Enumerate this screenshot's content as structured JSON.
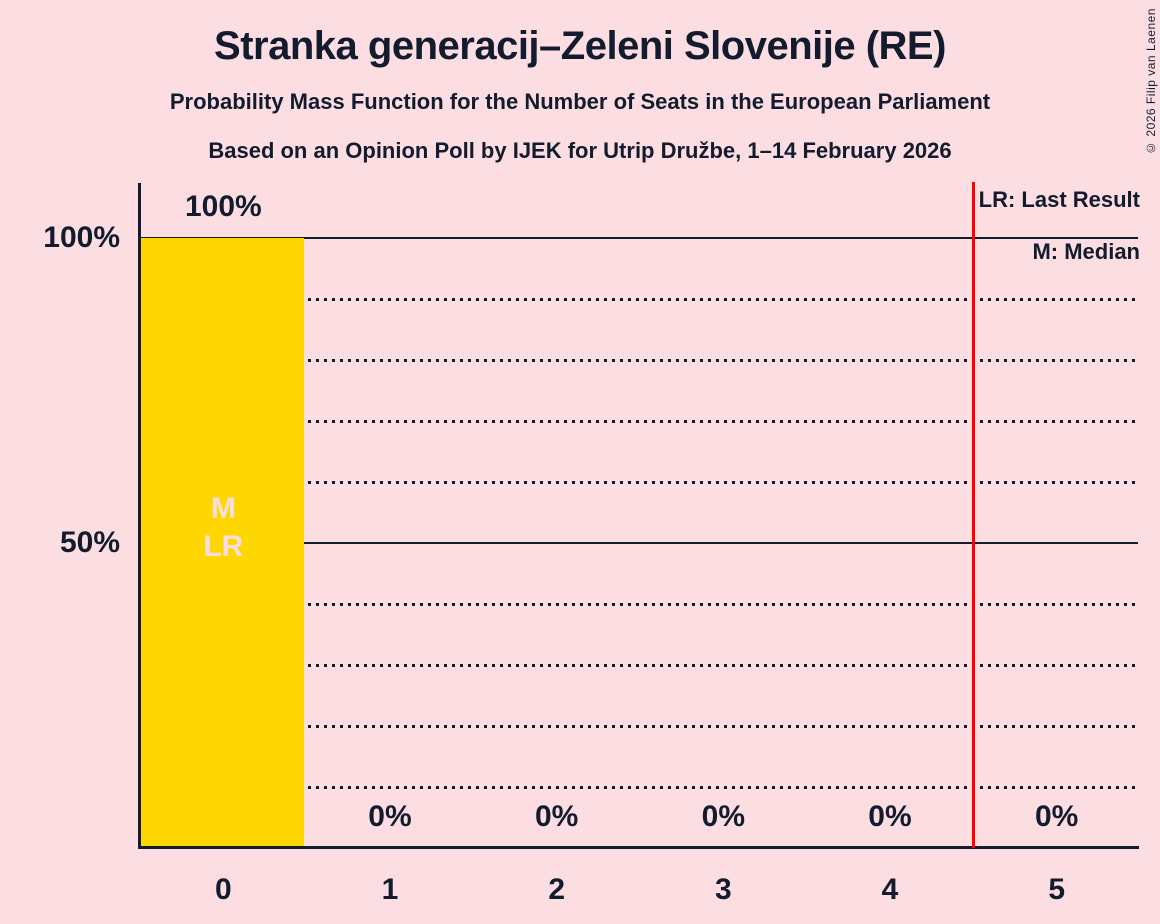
{
  "title": "Stranka generacij–Zeleni Slovenije (RE)",
  "subtitle1": "Probability Mass Function for the Number of Seats in the European Parliament",
  "subtitle2": "Based on an Opinion Poll by IJEK for Utrip Družbe, 1–14 February 2026",
  "copyright": "© 2026 Filip van Laenen",
  "legend": {
    "lr": "LR: Last Result",
    "m": "M: Median"
  },
  "colors": {
    "background": "#fcdee2",
    "text": "#131c2e",
    "bar": "#ffd700",
    "bar_label": "#fcdee2",
    "marker": "#ff0000"
  },
  "chart_data": {
    "type": "bar",
    "title": "Stranka generacij–Zeleni Slovenije (RE)",
    "categories": [
      "0",
      "1",
      "2",
      "3",
      "4",
      "5"
    ],
    "values": [
      100,
      0,
      0,
      0,
      0,
      0
    ],
    "value_labels": [
      "100%",
      "0%",
      "0%",
      "0%",
      "0%",
      "0%"
    ],
    "ylim": [
      0,
      100
    ],
    "yticks": [
      {
        "label": "100%",
        "value": 100
      },
      {
        "label": "50%",
        "value": 50
      }
    ],
    "gridlines": [
      {
        "value": 100,
        "style": "solid"
      },
      {
        "value": 90,
        "style": "dotted"
      },
      {
        "value": 80,
        "style": "dotted"
      },
      {
        "value": 70,
        "style": "dotted"
      },
      {
        "value": 60,
        "style": "dotted"
      },
      {
        "value": 50,
        "style": "solid"
      },
      {
        "value": 40,
        "style": "dotted"
      },
      {
        "value": 30,
        "style": "dotted"
      },
      {
        "value": 20,
        "style": "dotted"
      },
      {
        "value": 10,
        "style": "dotted"
      }
    ],
    "annotations": [
      {
        "category": 0,
        "lines": [
          "M",
          "LR"
        ]
      }
    ],
    "last_result_marker_position": 4.5,
    "median_category": "0",
    "last_result_category": "0",
    "legend_position": "top-right",
    "grid": "horizontal"
  }
}
